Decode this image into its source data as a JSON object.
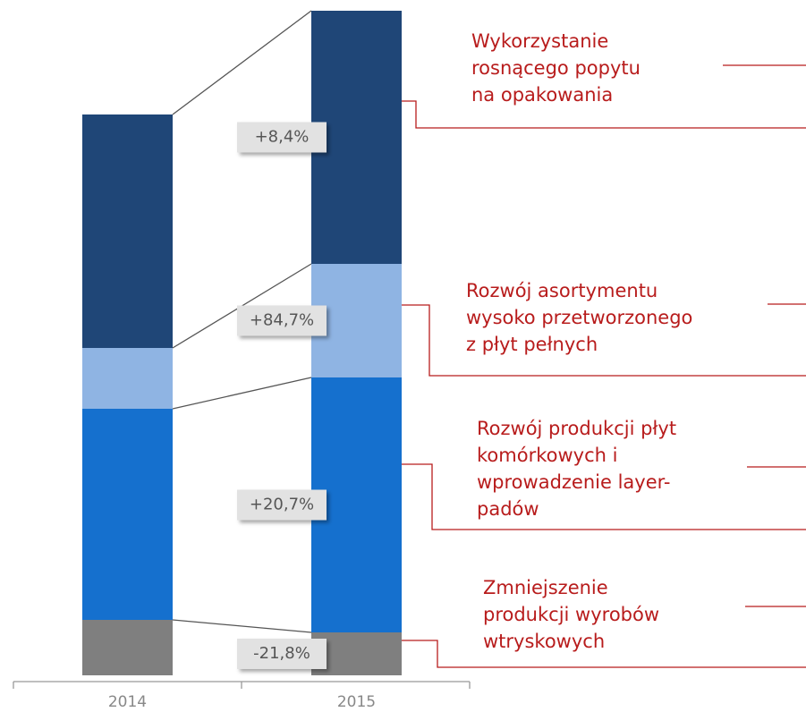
{
  "chart_data": {
    "type": "stacked_bar",
    "categories": [
      "2014",
      "2015"
    ],
    "series": [
      {
        "color": "#7f7f7f",
        "values": [
          62,
          48
        ],
        "change_label": "-21,8%",
        "annotation": [
          "Zmniejszenie",
          "produkcji wyrobów",
          "wtryskowych"
        ]
      },
      {
        "color": "#1570ce",
        "values": [
          236,
          285
        ],
        "change_label": "+20,7%",
        "annotation": [
          "Rozwój produkcji płyt",
          "komórkowych i",
          "wprowadzenie layer-",
          "padów"
        ]
      },
      {
        "color": "#8fb4e3",
        "values": [
          68,
          127
        ],
        "change_label": "+84,7%",
        "annotation": [
          "Rozwój asortymentu",
          "wysoko przetworzonego",
          "z płyt pełnych"
        ]
      },
      {
        "color": "#1f4677",
        "values": [
          261,
          283
        ],
        "change_label": "+8,4%",
        "annotation": [
          "Wykorzystanie",
          "rosnącego popytu",
          "na opakowania"
        ]
      }
    ]
  }
}
